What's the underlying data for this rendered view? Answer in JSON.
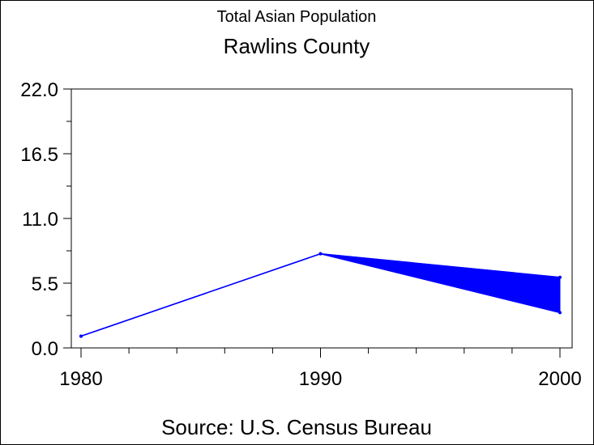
{
  "chart_data": {
    "type": "line",
    "title": "Total Asian Population",
    "subtitle": "Rawlins County",
    "footnote": "Source: U.S. Census Bureau",
    "xlabel": "",
    "ylabel": "",
    "x": [
      1980,
      1990,
      2000
    ],
    "x_tick_labels": [
      "1980",
      "1990",
      "2000"
    ],
    "xlim": [
      1980,
      2000
    ],
    "y_tick_labels": [
      "0.0",
      "5.5",
      "11.0",
      "16.5",
      "22.0"
    ],
    "ylim": [
      0,
      22
    ],
    "series": [
      {
        "name": "upper",
        "values": [
          1,
          8,
          6
        ]
      },
      {
        "name": "lower",
        "values": [
          1,
          8,
          3
        ]
      }
    ],
    "fill_between_series": true,
    "color": "#0000ff",
    "grid": false,
    "legend": "none"
  }
}
